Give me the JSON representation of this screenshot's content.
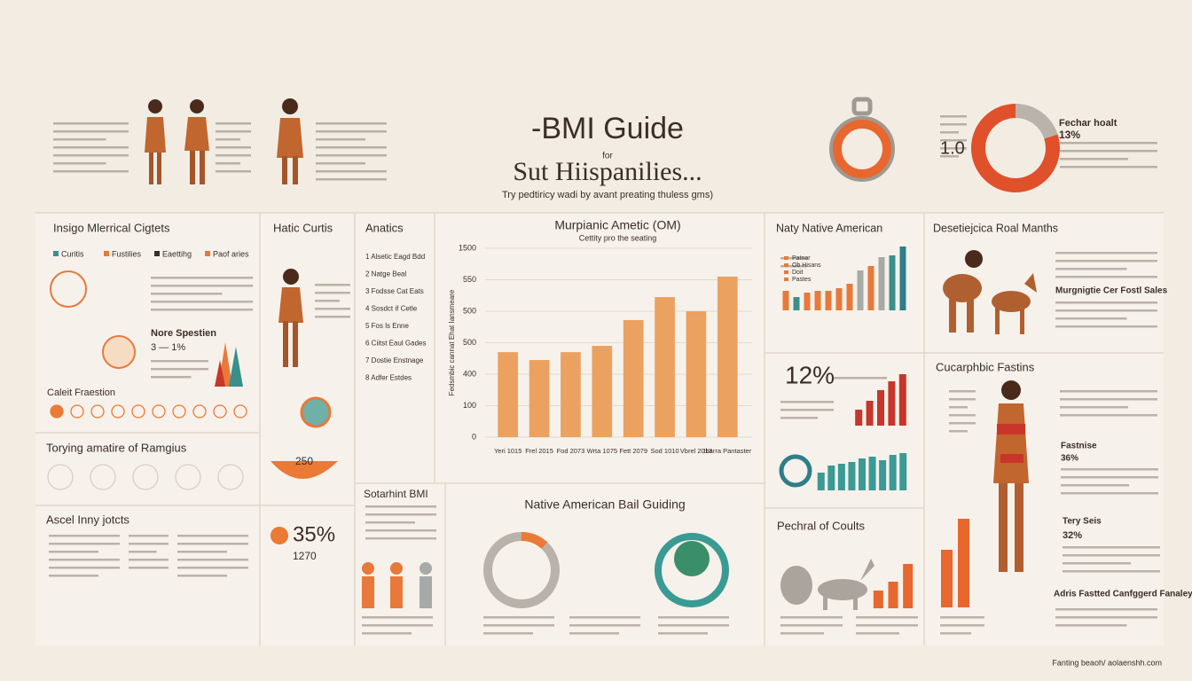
{
  "header": {
    "title": "-BMI Guide",
    "for": "for",
    "title2": "Sut Hiispanilies...",
    "tagline": "Try pedtiricy wadi by avant preating thuless gms)"
  },
  "headings": [
    "Insigo Mlerrical Cigtets",
    "Hatic Curtis",
    "Anatics",
    "Naty Native American",
    "Desetiejcica Roal Manths",
    "Nore Spestien",
    "Caleit Fraestion",
    "Torying amatire of Ramgius",
    "Ascel Inny jotcts",
    "Sotarhint BMI",
    "Native American Bail Guiding",
    "Pechral of Coults",
    "Cucarphbic Fastins",
    "Fechar hoalt",
    "Fastnise",
    "Tery Seis",
    "Adris Fastted Canfggerd Fanaley",
    "Murgnigtie Cer Fostl Sales",
    "Fanting beaoh/ aolaenshh.com"
  ],
  "stats": [
    "1.0",
    "13%",
    "12%",
    "35%",
    "250",
    "3 — 1%",
    "32%",
    "36%",
    "1270"
  ],
  "legend_top": [
    "Curitis",
    "Fustilies",
    "Eaettihg",
    "Paof aries"
  ],
  "native_legend": [
    "Patnar",
    "Ob Hisans",
    "Doit",
    "Pastes"
  ],
  "anatics": [
    "1 Alsetic Eagd Bdd",
    "2 Natge Beal",
    "3 Fodsse Cat Eats",
    "4 Sosdct if Cetle",
    "5 Fos ls Enne",
    "6 Ciitst Eaul Gades",
    "7 Dostie Enstnage",
    "8 Adfer Estdes"
  ],
  "chart_data": [
    {
      "type": "bar",
      "title": "Murpianic Ametic (OM)",
      "subtitle": "Cettity pro the seating",
      "y_label": "Fedsmbic cannat Ehat Iansmeare",
      "categories": [
        "Yeri 1015",
        "Frel 2015",
        "Fod 2073",
        "Wrta 1075",
        "Fett 2079",
        "Sod 1010",
        "Vbrel 2013",
        "Ibarra Pantaster"
      ],
      "values": [
        270,
        245,
        270,
        290,
        372,
        445,
        400,
        510
      ],
      "color": "#eba160",
      "ylim": [
        0,
        600
      ],
      "yticks": [
        0,
        100,
        {
          "value": 200,
          "label": "400"
        },
        {
          "value": 300,
          "label": "500"
        },
        {
          "value": 400,
          "label": "500"
        },
        {
          "value": 500,
          "label": "550"
        },
        {
          "value": 600,
          "label": "1500"
        }
      ],
      "grid": true
    },
    {
      "type": "bar",
      "values": [
        22,
        15,
        20,
        22,
        22,
        25,
        30,
        45,
        50,
        60,
        62,
        72
      ],
      "colors": [
        "#e8793a",
        "#3a8f8a",
        "#e8793a",
        "#e8793a",
        "#e8793a",
        "#e8793a",
        "#e8793a",
        "#a7aaa6",
        "#e8793a",
        "#a7aaa6",
        "#3a8f8a",
        "#2f7d8a"
      ]
    },
    {
      "type": "bar",
      "values": [
        18,
        28,
        40,
        50,
        58
      ],
      "color": "#c9352a"
    },
    {
      "type": "bar",
      "values": [
        20,
        28,
        30,
        32,
        36,
        38,
        34,
        40,
        42
      ],
      "color": "#3a9a94"
    },
    {
      "type": "bar",
      "values": [
        20,
        30,
        50
      ],
      "color": "#e8672e"
    },
    {
      "type": "bar",
      "values": [
        65,
        100
      ],
      "color": "#e8672e"
    },
    {
      "type": "pie",
      "values": [
        20,
        80
      ],
      "colors": [
        "#b9b3ab",
        "#e0502a"
      ]
    },
    {
      "type": "pie",
      "values": [
        12,
        88
      ],
      "colors": [
        "#ea7a35",
        "#b8b2aa"
      ]
    }
  ]
}
